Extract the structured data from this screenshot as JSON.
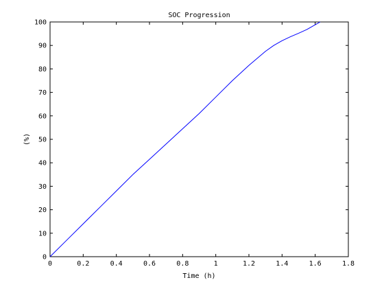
{
  "chart_data": {
    "type": "line",
    "title": "SOC Progression",
    "xlabel": "Time (h)",
    "ylabel": "(%)",
    "xlim": [
      0,
      1.8
    ],
    "ylim": [
      0,
      100
    ],
    "xticks": [
      0,
      0.2,
      0.4,
      0.6,
      0.8,
      1,
      1.2,
      1.4,
      1.6,
      1.8
    ],
    "xtick_labels": [
      "0",
      "0.2",
      "0.4",
      "0.6",
      "0.8",
      "1",
      "1.2",
      "1.4",
      "1.6",
      "1.8"
    ],
    "yticks": [
      0,
      10,
      20,
      30,
      40,
      50,
      60,
      70,
      80,
      90,
      100
    ],
    "ytick_labels": [
      "0",
      "10",
      "20",
      "30",
      "40",
      "50",
      "60",
      "70",
      "80",
      "90",
      "100"
    ],
    "grid": false,
    "series": [
      {
        "color": "#0000ff",
        "x": [
          0,
          0.1,
          0.2,
          0.3,
          0.4,
          0.5,
          0.6,
          0.7,
          0.8,
          0.9,
          1.0,
          1.1,
          1.2,
          1.25,
          1.3,
          1.35,
          1.4,
          1.45,
          1.5,
          1.55,
          1.6,
          1.63
        ],
        "y": [
          0,
          7,
          14,
          21,
          28,
          35,
          41.5,
          48,
          54.5,
          61,
          68,
          75,
          81.5,
          84.5,
          87.5,
          90,
          92,
          93.7,
          95.2,
          96.8,
          98.8,
          100
        ]
      }
    ]
  }
}
